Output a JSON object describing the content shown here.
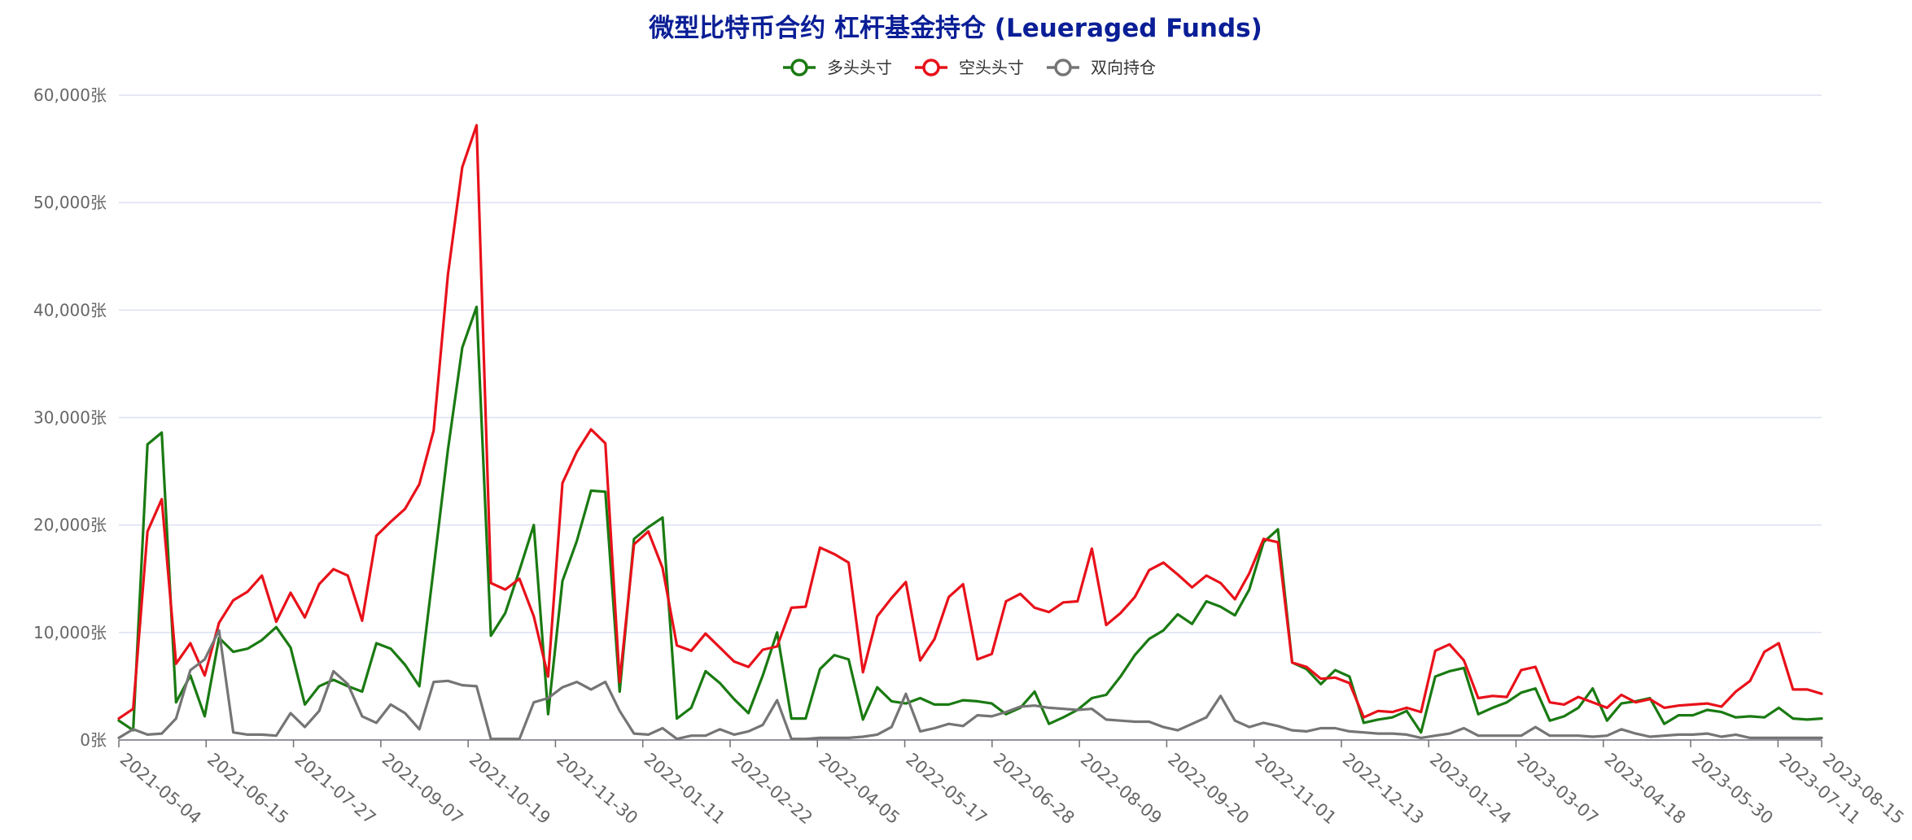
{
  "chart_data": {
    "type": "line",
    "title": "微型比特币合约 杠杆基金持仓 (Leueraged Funds)",
    "unit": "张",
    "ylim": [
      0,
      60000
    ],
    "y_ticks": [
      "0张",
      "10,000张",
      "20,000张",
      "30,000张",
      "40,000张",
      "50,000张",
      "60,000张"
    ],
    "x_tick_labels": [
      "2021-05-04",
      "2021-06-15",
      "2021-07-27",
      "2021-09-07",
      "2021-10-19",
      "2021-11-30",
      "2022-01-11",
      "2022-02-22",
      "2022-04-05",
      "2022-05-17",
      "2022-06-28",
      "2022-08-09",
      "2022-09-20",
      "2022-11-01",
      "2022-12-13",
      "2023-01-24",
      "2023-03-07",
      "2023-04-18",
      "2023-05-30",
      "2023-07-11",
      "2023-08-15"
    ],
    "legend_position": "top-center",
    "grid": true,
    "series": [
      {
        "name": "多头头寸",
        "color": "#1a7a12",
        "values": [
          1800,
          900,
          27500,
          28600,
          3500,
          6000,
          2200,
          9500,
          8200,
          8500,
          9300,
          10500,
          8600,
          3300,
          5000,
          5600,
          5000,
          4500,
          9000,
          8500,
          7000,
          5000,
          16000,
          27000,
          36500,
          40300,
          9700,
          11800,
          15800,
          20000,
          2400,
          14800,
          18500,
          23200,
          23100,
          4500,
          18700,
          19800,
          20700,
          2000,
          3000,
          6400,
          5300,
          3800,
          2500,
          6000,
          10000,
          2000,
          2000,
          6600,
          7900,
          7500,
          1900,
          4900,
          3600,
          3400,
          3900,
          3300,
          3300,
          3700,
          3600,
          3400,
          2400,
          3000,
          4500,
          1500,
          2100,
          2800,
          3900,
          4200,
          5900,
          7900,
          9400,
          10200,
          11700,
          10800,
          12900,
          12400,
          11600,
          14000,
          18400,
          19600,
          7200,
          6600,
          5200,
          6500,
          5900,
          1600,
          1900,
          2100,
          2700,
          700,
          5900,
          6400,
          6700,
          2400,
          3000,
          3500,
          4400,
          4800,
          1800,
          2200,
          3000,
          4800,
          1800,
          3400,
          3600,
          3900,
          1500,
          2300,
          2300,
          2800,
          2600,
          2100,
          2200,
          2100,
          3000,
          2000,
          1900,
          2000
        ],
        "legend_label": "多头头寸"
      },
      {
        "name": "空头头寸",
        "color": "#e8111a",
        "values": [
          2000,
          2900,
          19400,
          22400,
          7100,
          9000,
          6000,
          10900,
          13000,
          13800,
          15300,
          11000,
          13700,
          11400,
          14500,
          15900,
          15300,
          11100,
          19000,
          20300,
          21500,
          23800,
          28800,
          43300,
          53300,
          57200,
          14600,
          14000,
          15000,
          11500,
          5900,
          23900,
          26800,
          28900,
          27600,
          5400,
          18200,
          19400,
          16000,
          8800,
          8300,
          9900,
          8600,
          7300,
          6800,
          8400,
          8700,
          12300,
          12400,
          17900,
          17300,
          16500,
          6300,
          11500,
          13200,
          14700,
          7400,
          9400,
          13300,
          14500,
          7500,
          8000,
          12900,
          13600,
          12300,
          11900,
          12800,
          12900,
          17800,
          10700,
          11800,
          13300,
          15800,
          16500,
          15400,
          14200,
          15300,
          14600,
          13100,
          15500,
          18700,
          18400,
          7200,
          6800,
          5700,
          5800,
          5300,
          2100,
          2700,
          2600,
          3000,
          2600,
          8300,
          8900,
          7400,
          3900,
          4100,
          4000,
          6500,
          6800,
          3500,
          3300,
          4000,
          3500,
          3000,
          4200,
          3500,
          3800,
          3000,
          3200,
          3300,
          3400,
          3100,
          4500,
          5500,
          8200,
          9000,
          4700,
          4700,
          4300
        ],
        "legend_label": "空头头寸"
      },
      {
        "name": "双向持仓",
        "color": "#757575",
        "values": [
          200,
          1000,
          500,
          600,
          2000,
          6500,
          7500,
          10200,
          700,
          500,
          500,
          400,
          2500,
          1200,
          2700,
          6400,
          5200,
          2200,
          1600,
          3300,
          2500,
          1000,
          5400,
          5500,
          5100,
          5000,
          100,
          100,
          100,
          3500,
          3900,
          4900,
          5400,
          4700,
          5400,
          2700,
          600,
          500,
          1100,
          100,
          400,
          400,
          1000,
          500,
          800,
          1400,
          3700,
          100,
          100,
          200,
          200,
          200,
          300,
          500,
          1200,
          4300,
          800,
          1100,
          1500,
          1300,
          2300,
          2200,
          2600,
          3100,
          3200,
          3000,
          2900,
          2800,
          2900,
          1900,
          1800,
          1700,
          1700,
          1200,
          900,
          1500,
          2100,
          4100,
          1800,
          1200,
          1600,
          1300,
          900,
          800,
          1100,
          1100,
          800,
          700,
          600,
          600,
          500,
          200,
          400,
          600,
          1100,
          400,
          400,
          400,
          400,
          1200,
          400,
          400,
          400,
          300,
          400,
          1000,
          600,
          300,
          400,
          500,
          500,
          600,
          300,
          500,
          200,
          200,
          200,
          200,
          200,
          200
        ],
        "legend_label": "双向持仓"
      }
    ]
  }
}
